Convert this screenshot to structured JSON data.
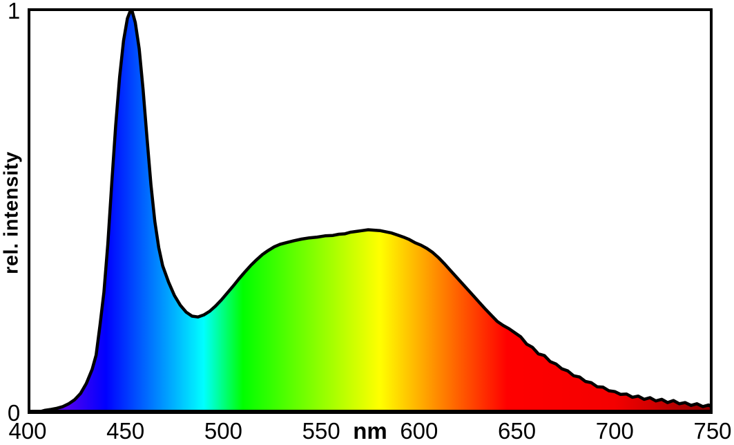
{
  "figure": {
    "background_color": "#ffffff",
    "frame_color": "#000000"
  },
  "chart_data": {
    "type": "area",
    "title": "",
    "xlabel": "nm",
    "ylabel": "rel. intensity",
    "xlim": [
      400,
      750
    ],
    "ylim": [
      0,
      1
    ],
    "x_ticks": [
      400,
      450,
      500,
      550,
      600,
      650,
      700,
      750
    ],
    "y_ticks": [
      0,
      1
    ],
    "y_tick_labels": [
      "0",
      "1"
    ],
    "xlabel_position_nm": 575,
    "grid": false,
    "legend": false,
    "curve_color": "#000000",
    "curve_width": 4.5,
    "features": {
      "blue_led_peak_nm": 453,
      "blue_led_peak_value": 1.0,
      "valley_nm": 486,
      "valley_value": 0.24,
      "phosphor_peak_nm": 575,
      "phosphor_peak_value": 0.45
    },
    "spectrum_stops": [
      {
        "nm": 400,
        "color": "#6a00a8"
      },
      {
        "nm": 420,
        "color": "#5000f0"
      },
      {
        "nm": 440,
        "color": "#0000ff"
      },
      {
        "nm": 460,
        "color": "#0066ff"
      },
      {
        "nm": 480,
        "color": "#00ccff"
      },
      {
        "nm": 490,
        "color": "#00ffff"
      },
      {
        "nm": 500,
        "color": "#00ff80"
      },
      {
        "nm": 510,
        "color": "#00ff00"
      },
      {
        "nm": 540,
        "color": "#6dff00"
      },
      {
        "nm": 560,
        "color": "#b6ff00"
      },
      {
        "nm": 580,
        "color": "#ffff00"
      },
      {
        "nm": 600,
        "color": "#ffb000"
      },
      {
        "nm": 620,
        "color": "#ff6000"
      },
      {
        "nm": 645,
        "color": "#ff0000"
      },
      {
        "nm": 700,
        "color": "#f40000"
      },
      {
        "nm": 720,
        "color": "#d00000"
      },
      {
        "nm": 750,
        "color": "#8c0000"
      }
    ],
    "points": [
      [
        400,
        0.004
      ],
      [
        403,
        0.006
      ],
      [
        406,
        0.005
      ],
      [
        409,
        0.009
      ],
      [
        412,
        0.011
      ],
      [
        415,
        0.014
      ],
      [
        418,
        0.018
      ],
      [
        421,
        0.025
      ],
      [
        424,
        0.035
      ],
      [
        427,
        0.05
      ],
      [
        430,
        0.075
      ],
      [
        433,
        0.11
      ],
      [
        435,
        0.145
      ],
      [
        437,
        0.22
      ],
      [
        439,
        0.3
      ],
      [
        441,
        0.42
      ],
      [
        443,
        0.57
      ],
      [
        445,
        0.71
      ],
      [
        447,
        0.83
      ],
      [
        449,
        0.92
      ],
      [
        451,
        0.975
      ],
      [
        453,
        1.0
      ],
      [
        455,
        0.965
      ],
      [
        457,
        0.9
      ],
      [
        459,
        0.8
      ],
      [
        461,
        0.68
      ],
      [
        463,
        0.565
      ],
      [
        465,
        0.475
      ],
      [
        467,
        0.41
      ],
      [
        469,
        0.365
      ],
      [
        472,
        0.325
      ],
      [
        475,
        0.292
      ],
      [
        478,
        0.268
      ],
      [
        481,
        0.251
      ],
      [
        484,
        0.241
      ],
      [
        487,
        0.239
      ],
      [
        490,
        0.244
      ],
      [
        493,
        0.253
      ],
      [
        496,
        0.266
      ],
      [
        499,
        0.281
      ],
      [
        502,
        0.298
      ],
      [
        505,
        0.315
      ],
      [
        508,
        0.333
      ],
      [
        511,
        0.35
      ],
      [
        514,
        0.366
      ],
      [
        517,
        0.38
      ],
      [
        520,
        0.393
      ],
      [
        523,
        0.403
      ],
      [
        526,
        0.412
      ],
      [
        529,
        0.418
      ],
      [
        532,
        0.422
      ],
      [
        536,
        0.427
      ],
      [
        540,
        0.431
      ],
      [
        544,
        0.434
      ],
      [
        548,
        0.436
      ],
      [
        552,
        0.439
      ],
      [
        556,
        0.44
      ],
      [
        559,
        0.443
      ],
      [
        562,
        0.444
      ],
      [
        565,
        0.448
      ],
      [
        568,
        0.45
      ],
      [
        571,
        0.452
      ],
      [
        574,
        0.454
      ],
      [
        577,
        0.453
      ],
      [
        580,
        0.452
      ],
      [
        583,
        0.449
      ],
      [
        586,
        0.446
      ],
      [
        589,
        0.441
      ],
      [
        592,
        0.436
      ],
      [
        595,
        0.43
      ],
      [
        598,
        0.422
      ],
      [
        601,
        0.416
      ],
      [
        604,
        0.408
      ],
      [
        607,
        0.398
      ],
      [
        610,
        0.385
      ],
      [
        613,
        0.37
      ],
      [
        616,
        0.354
      ],
      [
        619,
        0.338
      ],
      [
        622,
        0.322
      ],
      [
        625,
        0.306
      ],
      [
        628,
        0.29
      ],
      [
        631,
        0.274
      ],
      [
        634,
        0.258
      ],
      [
        637,
        0.243
      ],
      [
        640,
        0.228
      ],
      [
        643,
        0.218
      ],
      [
        646,
        0.21
      ],
      [
        649,
        0.2
      ],
      [
        652,
        0.19
      ],
      [
        655,
        0.172
      ],
      [
        658,
        0.164
      ],
      [
        661,
        0.148
      ],
      [
        664,
        0.144
      ],
      [
        667,
        0.129
      ],
      [
        670,
        0.123
      ],
      [
        673,
        0.111
      ],
      [
        676,
        0.106
      ],
      [
        679,
        0.094
      ],
      [
        682,
        0.091
      ],
      [
        685,
        0.08
      ],
      [
        688,
        0.077
      ],
      [
        691,
        0.067
      ],
      [
        694,
        0.066
      ],
      [
        697,
        0.057
      ],
      [
        700,
        0.055
      ],
      [
        703,
        0.048
      ],
      [
        706,
        0.049
      ],
      [
        709,
        0.041
      ],
      [
        712,
        0.044
      ],
      [
        715,
        0.036
      ],
      [
        718,
        0.04
      ],
      [
        721,
        0.032
      ],
      [
        724,
        0.036
      ],
      [
        727,
        0.028
      ],
      [
        730,
        0.033
      ],
      [
        733,
        0.025
      ],
      [
        736,
        0.028
      ],
      [
        739,
        0.021
      ],
      [
        742,
        0.025
      ],
      [
        745,
        0.018
      ],
      [
        748,
        0.022
      ],
      [
        750,
        0.016
      ]
    ]
  }
}
